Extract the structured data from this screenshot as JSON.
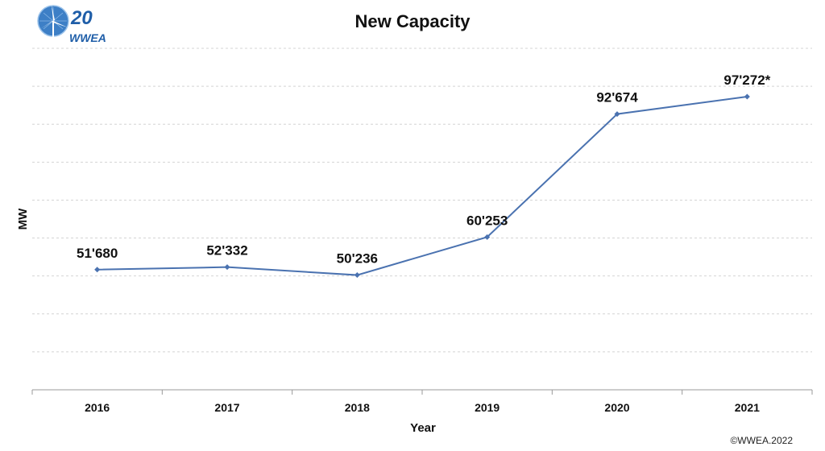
{
  "logo": {
    "number": "20",
    "text": "WWEA"
  },
  "copyright": "©WWEA.2022",
  "chart_data": {
    "type": "line",
    "title": "New Capacity",
    "xlabel": "Year",
    "ylabel": "MW",
    "categories": [
      "2016",
      "2017",
      "2018",
      "2019",
      "2020",
      "2021"
    ],
    "series": [
      {
        "values": [
          51680,
          52332,
          50236,
          60253,
          92674,
          97272
        ],
        "labels": [
          "51'680",
          "52'332",
          "50'236",
          "60'253",
          "92'674",
          "97'272*"
        ]
      }
    ],
    "ylim": [
      20000,
      110000
    ],
    "grid": true,
    "legend": "none",
    "colors": {
      "line": "#4a72b0",
      "grid": "#d4d4d4",
      "axis": "#999999"
    }
  }
}
